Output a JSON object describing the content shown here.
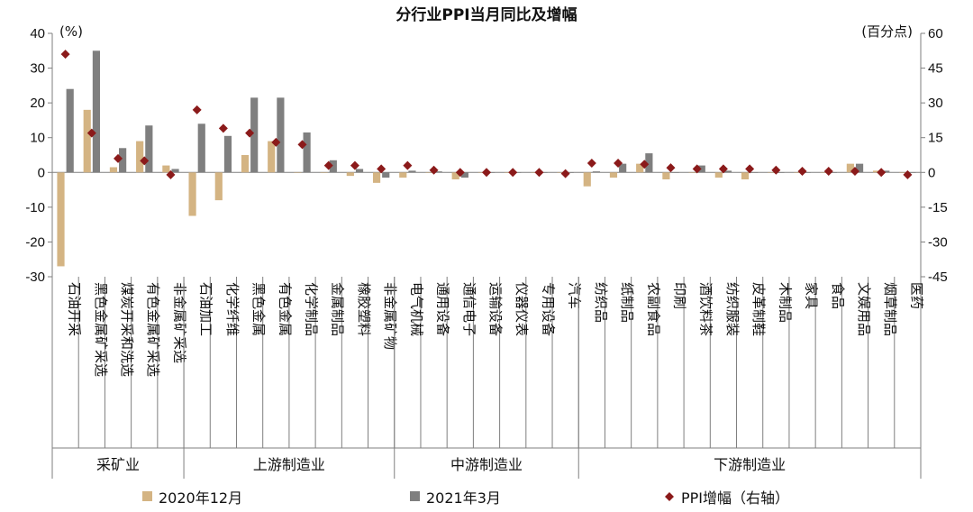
{
  "chart_data": {
    "type": "bar",
    "title": "分行业PPI当月同比及增幅",
    "left_axis": {
      "unit_label": "(%)",
      "ylim": [
        -30,
        40
      ],
      "ticks": [
        -30,
        -20,
        -10,
        0,
        10,
        20,
        30,
        40
      ]
    },
    "right_axis": {
      "unit_label": "(百分点)",
      "ylim": [
        -45,
        60
      ],
      "ticks": [
        -45,
        -30,
        -15,
        0,
        15,
        30,
        45,
        60
      ]
    },
    "categories": [
      "石油开采",
      "黑色金属矿采选",
      "煤炭开采和洗选",
      "有色金属矿采选",
      "非金属矿采选",
      "石油加工",
      "化学纤维",
      "黑色金属",
      "有色金属",
      "化学制品",
      "金属制品",
      "橡胶塑料",
      "非金属矿物",
      "电气机械",
      "通用设备",
      "通信电子",
      "运输设备",
      "仪器仪表",
      "专用设备",
      "汽车",
      "纺织品",
      "纸制品",
      "农副食品",
      "印刷",
      "酒饮料茶",
      "纺织服装",
      "皮革制鞋",
      "木制品",
      "家具",
      "食品",
      "文娱用品",
      "烟草制品",
      "医药"
    ],
    "groups": [
      {
        "label": "采矿业",
        "count": 5
      },
      {
        "label": "上游制造业",
        "count": 8
      },
      {
        "label": "中游制造业",
        "count": 7
      },
      {
        "label": "下游制造业",
        "count": 13
      }
    ],
    "series": [
      {
        "name": "2020年12月",
        "axis": "left",
        "kind": "bar",
        "color": "#d4b483",
        "values": [
          -27,
          18,
          1.5,
          9,
          2,
          -12.5,
          -8,
          5,
          9,
          0,
          0,
          -1,
          -3,
          -1.5,
          0,
          -2,
          0,
          0,
          0,
          0,
          -4,
          -1.5,
          2.5,
          -2,
          0,
          -1.5,
          -2,
          0,
          0,
          0,
          2.5,
          0.5,
          0
        ]
      },
      {
        "name": "2021年3月",
        "axis": "left",
        "kind": "bar",
        "color": "#7f7f7f",
        "values": [
          24,
          35,
          7,
          13.5,
          1,
          14,
          10.5,
          21.5,
          21.5,
          11.5,
          3.5,
          1,
          -1.5,
          0.5,
          0.3,
          -1.5,
          0,
          0,
          0,
          0,
          0.3,
          2.5,
          5.5,
          0,
          2,
          0.5,
          0,
          0,
          0,
          0,
          2.5,
          0.5,
          0
        ]
      },
      {
        "name": "PPI增幅（右轴）",
        "axis": "right",
        "kind": "marker",
        "color": "#8b1a1a",
        "values": [
          51,
          17,
          6,
          5,
          -1,
          27,
          19,
          17,
          13,
          12,
          3,
          3,
          1.5,
          3,
          1,
          0,
          0,
          0,
          0,
          -0.5,
          4,
          4,
          3.5,
          2,
          1.5,
          1.5,
          1.5,
          1,
          0.5,
          0.5,
          0.5,
          0,
          -1
        ]
      }
    ],
    "legend_position": "bottom",
    "grid": false
  }
}
